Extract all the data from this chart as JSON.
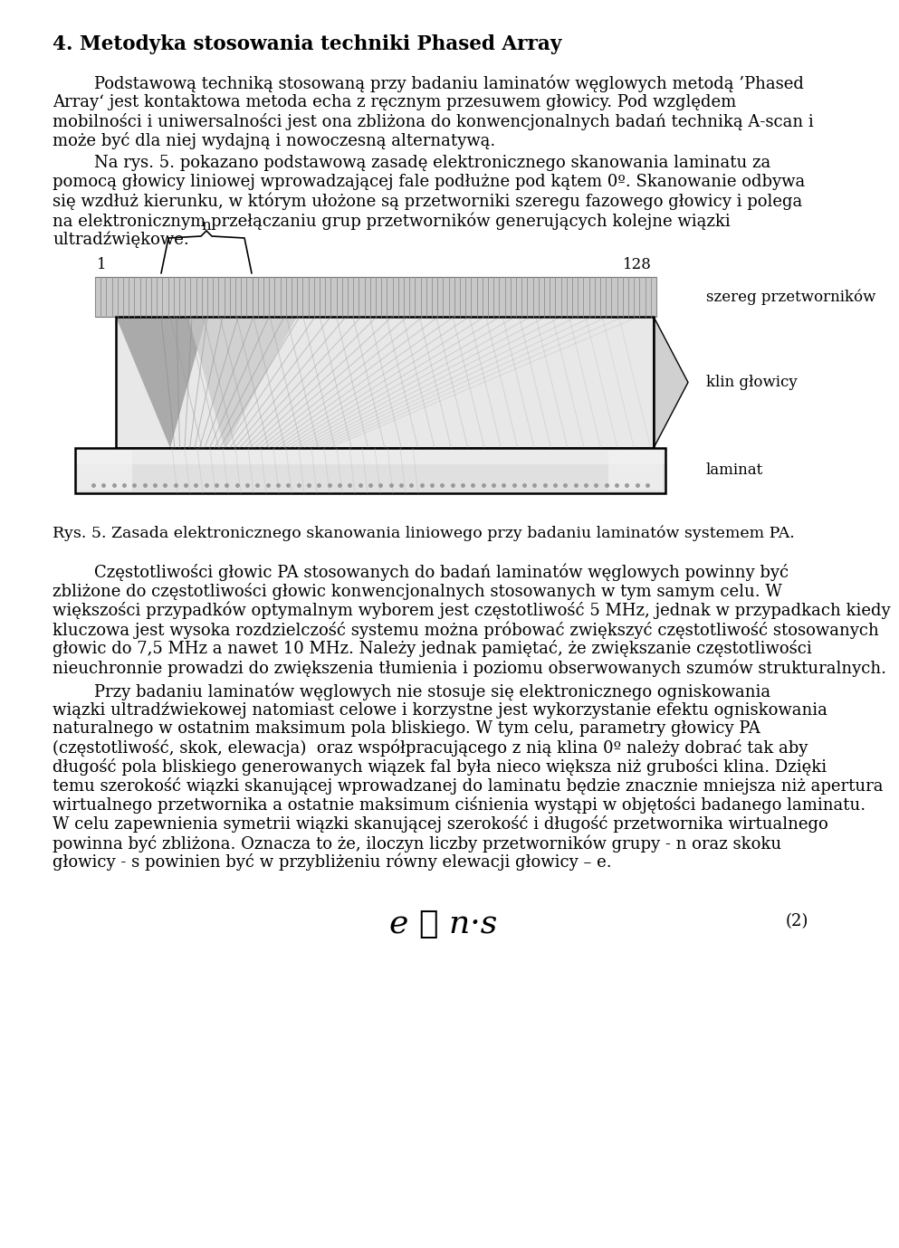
{
  "title": "4. Metodyka stosowania techniki Phased Array",
  "para1_indent": "        Podstawową techniką stosowaną przy badaniu laminatów węglowych metodą ’Phased",
  "para1_lines": [
    "        Podstawową techniką stosowaną przy badaniu laminatów węglowych metodą Phased Array jest",
    "kontaktowa metoda echa z ręcznym przesuwem głowicy. Pod względem mobilności i uniwersalności",
    "jest ona zbliżona do konwencjonalnych badań techniką A-scan i może być dla niej wydajną i",
    "nowoczesną alternatywą."
  ],
  "para2_lines": [
    "        Na rys. 5. pokazano podstawową zasadę elektronicznego skanowania laminatu za",
    "pomocą głowicy liniowej wprowadzającej fale podłużne pod kątem 0º. Skanowanie odbywa się",
    "wzdłuż kierunku, w którym ułożone są przetworniki szeregu fazowego głowicy i polega na",
    "elektronicznym przełączaniu grup przetworników generujących kolejne wiązki ultradźwiękowe."
  ],
  "fig_caption": "Rys. 5. Zasada elektronicznego skanowania liniowego przy badaniu laminatów systemem PA.",
  "para3_lines": [
    "        Częstotliwości głowic PA stosowanych do badań laminatów węglowych powinny być",
    "zbliżone do częstotliwości głowic konwencjonalnych stosowanych w tym samym celu. W",
    "większości przypadków optymalnym wyborem jest częstotliwość 5 MHz, jednak w przypadkach kiedy",
    "kluczowa jest wysoka rozdzielczość systemu można próbować zwiększyć częstotliwość stosowanych",
    "głowic do 7,5 MHz a nawet 10 MHz. Należy jednak pamiętać, że zwiększanie częstotliwości",
    "nieuchronnie prowadzi do zwiększenia tłumienia i poziomu obserwowanych szumów strukturalnych."
  ],
  "para4_lines": [
    "        Przy badaniu laminatów węglowych nie stosuje się elektronicznego ogniskowania",
    "wiązki ultradźwiekowej natomiast celowe i korzystne jest wykorzystanie efektu ogniskowania",
    "naturalnego w ostatnim maksimum pola bliskiego. W tym celu, parametry głowicy PA",
    "(częstotliwość, skok, elewacja)  oraz współpracującego z nią klina 0º należy dobrać tak aby",
    "długość pola bliskiego generowanych wiązek fal była nieco większa niż grubości klina. Dzięki",
    "temu szerokość wiązki skanującej wprowadzanej do laminatu będzie znacznie mniejsza niż apertura",
    "wirtualnego przetwornika a ostatnie maksimum ciśnienia wystąpi w objętości badanego laminatu.",
    "W celu zapewnienia symetrii wiązki skanującej szerokość i długość przetwornika wirtualnego",
    "powinna być zbliżona. Oznacza to że, iloczyn liczby przetworników grupy - n oraz skoku",
    "głowicy - s powinien być w przybliżeniu równy elewacji głowicy – e."
  ],
  "label_szereg": "szereg przetworników",
  "label_klin": "klin głowicy",
  "label_laminat": "laminat",
  "bg_color": "#ffffff",
  "text_color": "#000000",
  "fig_width": 9.6,
  "fig_height": 13.59
}
